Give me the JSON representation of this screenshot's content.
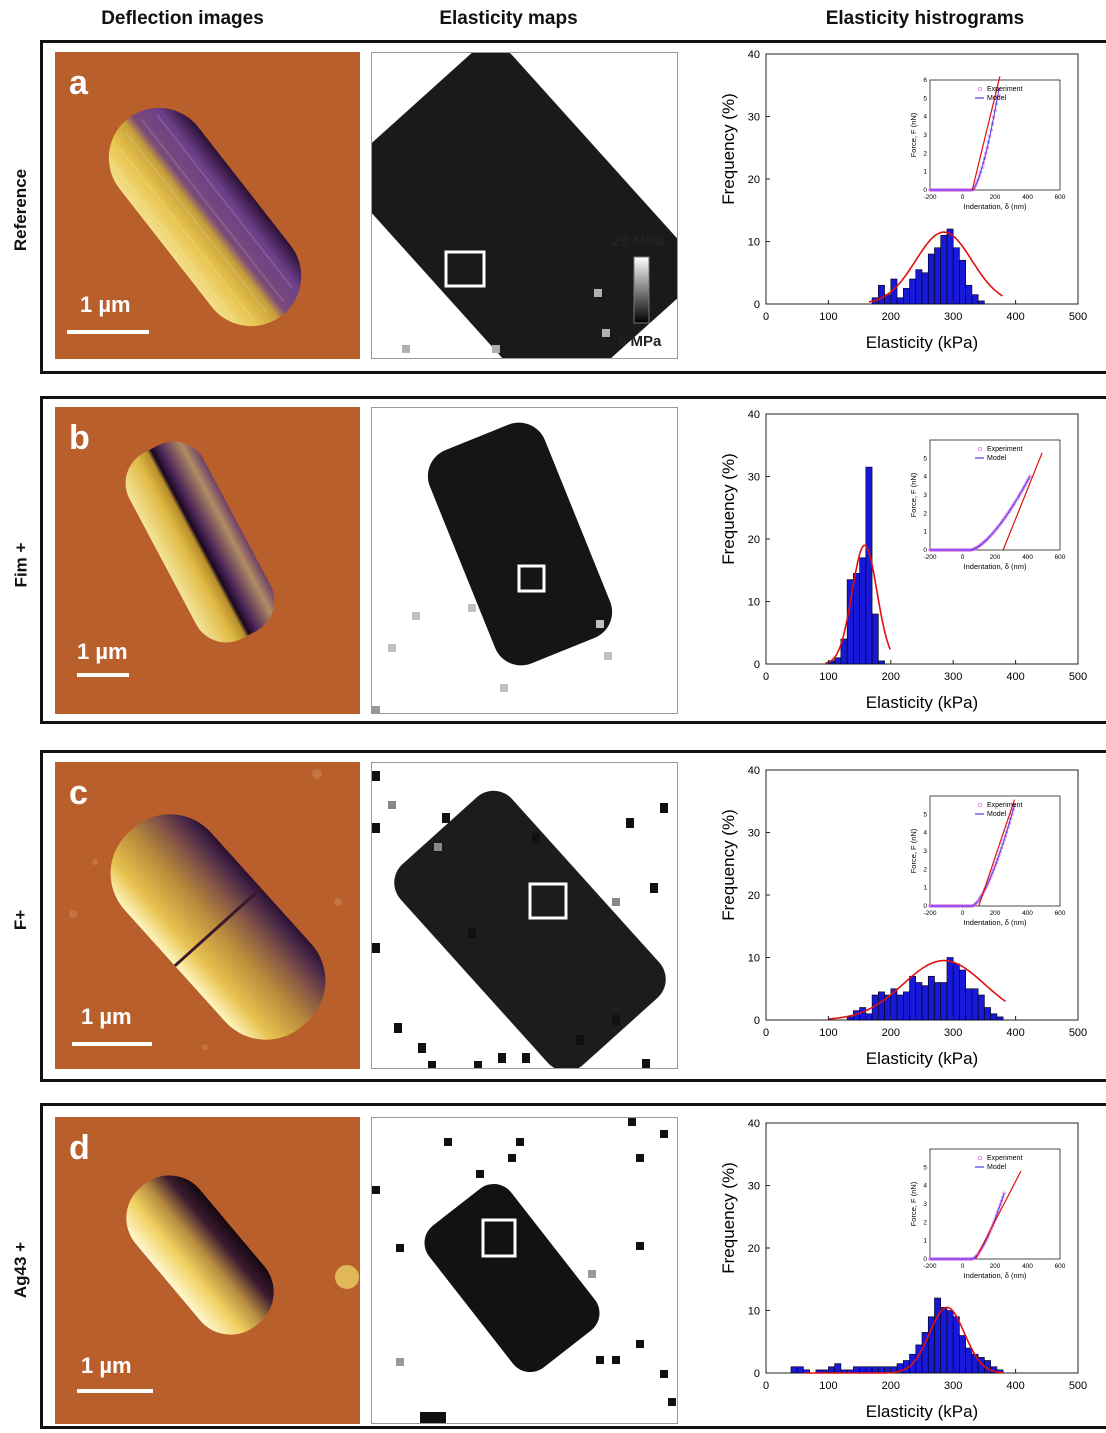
{
  "headers": {
    "deflection": "Deflection images",
    "elasticity_maps": "Elasticity maps",
    "elasticity_histograms": "Elasticity histrograms"
  },
  "colorbar": {
    "max_label": "20 MPa",
    "min_label": "0 MPa"
  },
  "panels": [
    {
      "letter": "a",
      "row_label": "Reference",
      "scale_bar": "1 µm"
    },
    {
      "letter": "b",
      "row_label": "Fim +",
      "scale_bar": "1 µm"
    },
    {
      "letter": "c",
      "row_label": "F+",
      "scale_bar": "1 µm"
    },
    {
      "letter": "d",
      "row_label": "Ag43 +",
      "scale_bar": "1 µm"
    }
  ],
  "chart_data": [
    {
      "type": "bar",
      "panel": "a",
      "xlabel": "Elasticity (kPa)",
      "ylabel": "Frequency  (%)",
      "xlim": [
        0,
        500
      ],
      "ylim": [
        0,
        40
      ],
      "xticks": [
        0,
        100,
        200,
        300,
        400,
        500
      ],
      "yticks": [
        0,
        10,
        20,
        30,
        40
      ],
      "bin_width": 10,
      "bins": [
        [
          175,
          1
        ],
        [
          185,
          3
        ],
        [
          195,
          1.5
        ],
        [
          205,
          4
        ],
        [
          215,
          1
        ],
        [
          225,
          2.5
        ],
        [
          235,
          4
        ],
        [
          245,
          5.5
        ],
        [
          255,
          5
        ],
        [
          265,
          8
        ],
        [
          275,
          9
        ],
        [
          285,
          11
        ],
        [
          295,
          12
        ],
        [
          305,
          9
        ],
        [
          315,
          7
        ],
        [
          325,
          3
        ],
        [
          335,
          1.5
        ],
        [
          345,
          0.5
        ]
      ],
      "fit_curve": {
        "center": 285,
        "sigma": 45,
        "peak": 11.5,
        "range": [
          165,
          380
        ]
      },
      "inset": {
        "legend": [
          "Experiment",
          "Model"
        ],
        "xlabel": "Indentation, δ (nm)",
        "ylabel": "Force, F (nN)",
        "xlim": [
          -200,
          600
        ],
        "ylim": [
          0,
          6
        ],
        "xticks": [
          -200,
          0,
          200,
          400,
          600
        ],
        "yticks": [
          0,
          1,
          2,
          3,
          4,
          5,
          6
        ],
        "contact_point": 60,
        "end": [
          230,
          5.8
        ],
        "tangent": [
          [
            60,
            0
          ],
          [
            230,
            6.2
          ]
        ]
      }
    },
    {
      "type": "bar",
      "panel": "b",
      "xlabel": "Elasticity (kPa)",
      "ylabel": "Frequency  (%)",
      "xlim": [
        0,
        500
      ],
      "ylim": [
        0,
        40
      ],
      "xticks": [
        0,
        100,
        200,
        300,
        400,
        500
      ],
      "yticks": [
        0,
        10,
        20,
        30,
        40
      ],
      "bin_width": 10,
      "bins": [
        [
          105,
          0.5
        ],
        [
          115,
          1
        ],
        [
          125,
          4
        ],
        [
          135,
          13.5
        ],
        [
          145,
          14.5
        ],
        [
          155,
          17
        ],
        [
          165,
          31.5
        ],
        [
          175,
          8
        ],
        [
          185,
          0.5
        ]
      ],
      "fit_curve": {
        "center": 158,
        "sigma": 20,
        "peak": 19,
        "range": [
          95,
          200
        ]
      },
      "inset": {
        "legend": [
          "Experiment",
          "Model"
        ],
        "xlabel": "Indentation, δ (nm)",
        "ylabel": "Force, F (nN)",
        "xlim": [
          -200,
          600
        ],
        "ylim": [
          0,
          6
        ],
        "xticks": [
          -200,
          0,
          200,
          400,
          600
        ],
        "yticks": [
          0,
          1,
          2,
          3,
          4,
          5
        ],
        "contact_point": 50,
        "end": [
          420,
          4.1
        ],
        "tangent": [
          [
            250,
            0
          ],
          [
            490,
            5.3
          ]
        ]
      }
    },
    {
      "type": "bar",
      "panel": "c",
      "xlabel": "Elasticity (kPa)",
      "ylabel": "Frequency  (%)",
      "xlim": [
        0,
        500
      ],
      "ylim": [
        0,
        40
      ],
      "xticks": [
        0,
        100,
        200,
        300,
        400,
        500
      ],
      "yticks": [
        0,
        10,
        20,
        30,
        40
      ],
      "bin_width": 10,
      "bins": [
        [
          135,
          0.5
        ],
        [
          145,
          1.5
        ],
        [
          155,
          2
        ],
        [
          165,
          1
        ],
        [
          175,
          4
        ],
        [
          185,
          4.5
        ],
        [
          195,
          4
        ],
        [
          205,
          5
        ],
        [
          215,
          4
        ],
        [
          225,
          4.5
        ],
        [
          235,
          7
        ],
        [
          245,
          6
        ],
        [
          255,
          5.5
        ],
        [
          265,
          7
        ],
        [
          275,
          6
        ],
        [
          285,
          6
        ],
        [
          295,
          10
        ],
        [
          305,
          9
        ],
        [
          315,
          8
        ],
        [
          325,
          5
        ],
        [
          335,
          5
        ],
        [
          345,
          4
        ],
        [
          355,
          2
        ],
        [
          365,
          1
        ],
        [
          375,
          0.5
        ]
      ],
      "fit_curve": {
        "center": 285,
        "sigma": 65,
        "peak": 9.5,
        "range": [
          100,
          385
        ]
      },
      "inset": {
        "legend": [
          "Experiment",
          "Model"
        ],
        "xlabel": "Indentation, δ (nm)",
        "ylabel": "Force, F (nN)",
        "xlim": [
          -200,
          600
        ],
        "ylim": [
          0,
          6
        ],
        "xticks": [
          -200,
          0,
          200,
          400,
          600
        ],
        "yticks": [
          0,
          1,
          2,
          3,
          4,
          5
        ],
        "contact_point": 60,
        "end": [
          320,
          5.5
        ],
        "tangent": [
          [
            100,
            0
          ],
          [
            320,
            5.8
          ]
        ]
      }
    },
    {
      "type": "bar",
      "panel": "d",
      "xlabel": "Elasticity (kPa)",
      "ylabel": "Frequency  (%)",
      "xlim": [
        0,
        500
      ],
      "ylim": [
        0,
        40
      ],
      "xticks": [
        0,
        100,
        200,
        300,
        400,
        500
      ],
      "yticks": [
        0,
        10,
        20,
        30,
        40
      ],
      "bin_width": 10,
      "bins": [
        [
          45,
          1
        ],
        [
          55,
          1
        ],
        [
          65,
          0.5
        ],
        [
          85,
          0.5
        ],
        [
          95,
          0.5
        ],
        [
          105,
          1
        ],
        [
          115,
          1.5
        ],
        [
          125,
          0.5
        ],
        [
          135,
          0.5
        ],
        [
          145,
          1
        ],
        [
          155,
          1
        ],
        [
          165,
          1
        ],
        [
          175,
          1
        ],
        [
          185,
          1
        ],
        [
          195,
          1
        ],
        [
          205,
          1
        ],
        [
          215,
          1.5
        ],
        [
          225,
          2
        ],
        [
          235,
          3
        ],
        [
          245,
          4.5
        ],
        [
          255,
          6.5
        ],
        [
          265,
          9
        ],
        [
          275,
          12
        ],
        [
          285,
          10.5
        ],
        [
          295,
          10
        ],
        [
          305,
          9
        ],
        [
          315,
          6
        ],
        [
          325,
          4
        ],
        [
          335,
          3
        ],
        [
          345,
          2.5
        ],
        [
          355,
          2
        ],
        [
          365,
          1
        ],
        [
          375,
          0.5
        ]
      ],
      "fit_curve": {
        "center": 290,
        "sigma": 28,
        "peak": 10.5,
        "range": [
          60,
          380
        ]
      },
      "inset": {
        "legend": [
          "Experiment",
          "Model"
        ],
        "xlabel": "Indentation, δ (nm)",
        "ylabel": "Force, F (nN)",
        "xlim": [
          -200,
          600
        ],
        "ylim": [
          0,
          6
        ],
        "xticks": [
          -200,
          0,
          200,
          400,
          600
        ],
        "yticks": [
          0,
          1,
          2,
          3,
          4,
          5
        ],
        "contact_point": 60,
        "end": [
          260,
          3.7
        ],
        "tangent": [
          [
            80,
            0
          ],
          [
            360,
            4.8
          ]
        ]
      }
    }
  ]
}
